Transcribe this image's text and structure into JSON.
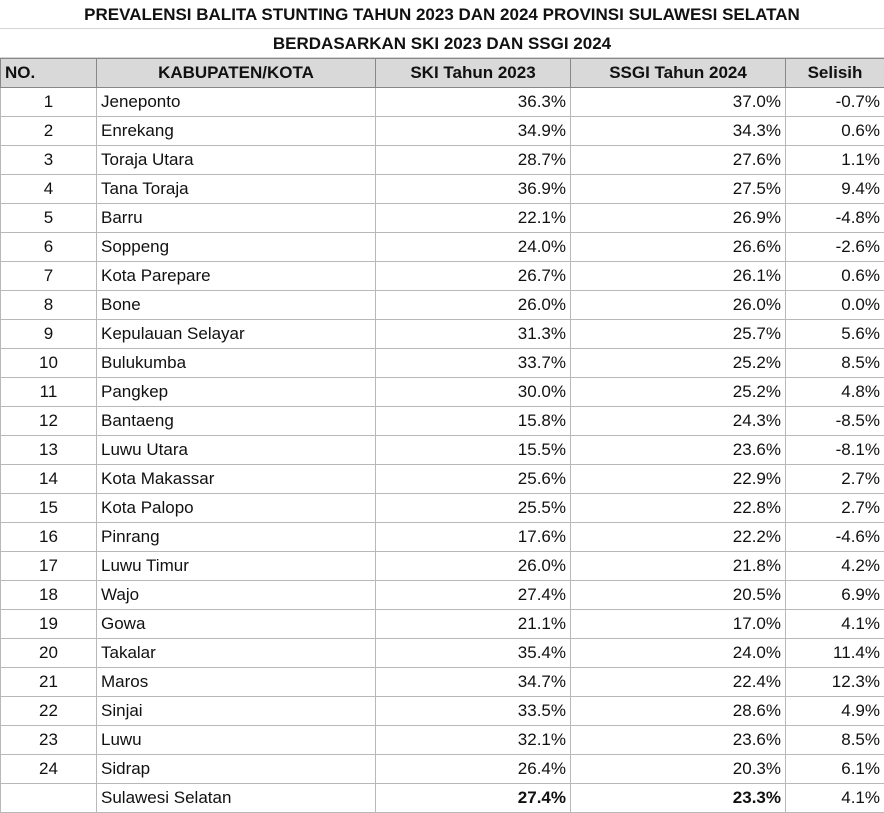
{
  "header": {
    "title": [
      "PREVALENSI BALITA STUNTING TAHUN 2023 DAN 2024 PROVINSI SULAWESI SELATAN",
      "BERDASARKAN SKI 2023 DAN SSGI 2024"
    ]
  },
  "table": {
    "columns": [
      "NO.",
      "KABUPATEN/KOTA",
      "SKI Tahun 2023",
      "SSGI Tahun 2024",
      "Selisih"
    ],
    "rows": [
      [
        "1",
        "Jeneponto",
        "36.3%",
        "37.0%",
        "-0.7%"
      ],
      [
        "2",
        "Enrekang",
        "34.9%",
        "34.3%",
        "0.6%"
      ],
      [
        "3",
        "Toraja Utara",
        "28.7%",
        "27.6%",
        "1.1%"
      ],
      [
        "4",
        "Tana Toraja",
        "36.9%",
        "27.5%",
        "9.4%"
      ],
      [
        "5",
        "Barru",
        "22.1%",
        "26.9%",
        "-4.8%"
      ],
      [
        "6",
        "Soppeng",
        "24.0%",
        "26.6%",
        "-2.6%"
      ],
      [
        "7",
        "Kota Parepare",
        "26.7%",
        "26.1%",
        "0.6%"
      ],
      [
        "8",
        "Bone",
        "26.0%",
        "26.0%",
        "0.0%"
      ],
      [
        "9",
        "Kepulauan Selayar",
        "31.3%",
        "25.7%",
        "5.6%"
      ],
      [
        "10",
        "Bulukumba",
        "33.7%",
        "25.2%",
        "8.5%"
      ],
      [
        "11",
        "Pangkep",
        "30.0%",
        "25.2%",
        "4.8%"
      ],
      [
        "12",
        "Bantaeng",
        "15.8%",
        "24.3%",
        "-8.5%"
      ],
      [
        "13",
        "Luwu Utara",
        "15.5%",
        "23.6%",
        "-8.1%"
      ],
      [
        "14",
        "Kota Makassar",
        "25.6%",
        "22.9%",
        "2.7%"
      ],
      [
        "15",
        "Kota Palopo",
        "25.5%",
        "22.8%",
        "2.7%"
      ],
      [
        "16",
        "Pinrang",
        "17.6%",
        "22.2%",
        "-4.6%"
      ],
      [
        "17",
        "Luwu Timur",
        "26.0%",
        "21.8%",
        "4.2%"
      ],
      [
        "18",
        "Wajo",
        "27.4%",
        "20.5%",
        "6.9%"
      ],
      [
        "19",
        "Gowa",
        "21.1%",
        "17.0%",
        "4.1%"
      ],
      [
        "20",
        "Takalar",
        "35.4%",
        "24.0%",
        "11.4%"
      ],
      [
        "21",
        "Maros",
        "34.7%",
        "22.4%",
        "12.3%"
      ],
      [
        "22",
        "Sinjai",
        "33.5%",
        "28.6%",
        "4.9%"
      ],
      [
        "23",
        "Luwu",
        "32.1%",
        "23.6%",
        "8.5%"
      ],
      [
        "24",
        "Sidrap",
        "26.4%",
        "20.3%",
        "6.1%"
      ]
    ],
    "total": {
      "name": "Sulawesi Selatan",
      "ski": "27.4%",
      "ssgi": "23.3%",
      "selisih": "4.1%"
    }
  }
}
